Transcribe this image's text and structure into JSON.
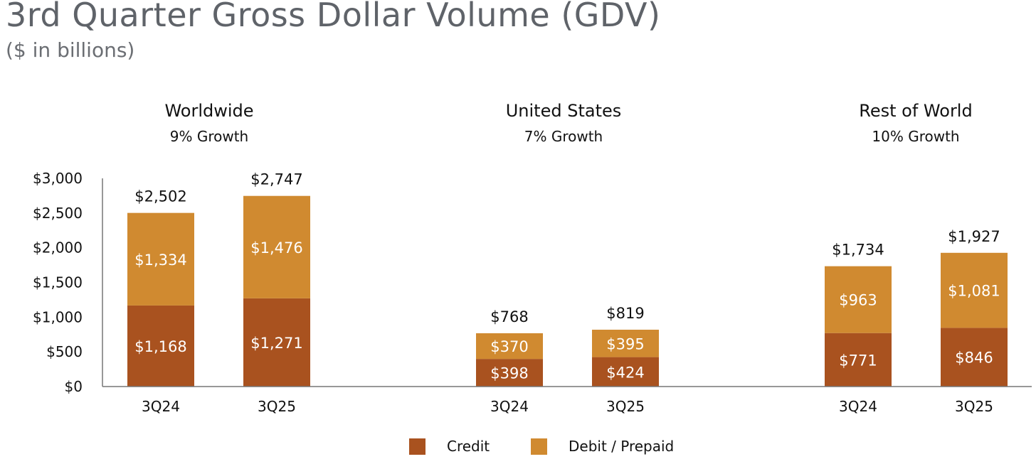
{
  "title": "3rd Quarter Gross Dollar Volume (GDV)",
  "subtitle": "($ in billions)",
  "colors": {
    "credit": "#a9521f",
    "debit": "#d08a30",
    "axis": "#777777",
    "text": "#111111",
    "bar_label": "#ffffff"
  },
  "chart_data": {
    "type": "bar",
    "stacked": true,
    "ylim": [
      0,
      3000
    ],
    "yticks": [
      0,
      500,
      1000,
      1500,
      2000,
      2500,
      3000
    ],
    "ytick_labels": [
      "$0",
      "$500",
      "$1,000",
      "$1,500",
      "$2,000",
      "$2,500",
      "$3,000"
    ],
    "legend": [
      "Credit",
      "Debit / Prepaid"
    ],
    "legend_position": "bottom",
    "groups": [
      {
        "name": "Worldwide",
        "growth": "9% Growth",
        "bars": [
          {
            "category": "3Q24",
            "credit": 1168,
            "debit": 1334,
            "total": 2502,
            "credit_label": "$1,168",
            "debit_label": "$1,334",
            "total_label": "$2,502"
          },
          {
            "category": "3Q25",
            "credit": 1271,
            "debit": 1476,
            "total": 2747,
            "credit_label": "$1,271",
            "debit_label": "$1,476",
            "total_label": "$2,747"
          }
        ]
      },
      {
        "name": "United States",
        "growth": "7% Growth",
        "bars": [
          {
            "category": "3Q24",
            "credit": 398,
            "debit": 370,
            "total": 768,
            "credit_label": "$398",
            "debit_label": "$370",
            "total_label": "$768"
          },
          {
            "category": "3Q25",
            "credit": 424,
            "debit": 395,
            "total": 819,
            "credit_label": "$424",
            "debit_label": "$395",
            "total_label": "$819"
          }
        ]
      },
      {
        "name": "Rest of World",
        "growth": "10% Growth",
        "bars": [
          {
            "category": "3Q24",
            "credit": 771,
            "debit": 963,
            "total": 1734,
            "credit_label": "$771",
            "debit_label": "$963",
            "total_label": "$1,734"
          },
          {
            "category": "3Q25",
            "credit": 846,
            "debit": 1081,
            "total": 1927,
            "credit_label": "$846",
            "debit_label": "$1,081",
            "total_label": "$1,927"
          }
        ]
      }
    ]
  }
}
